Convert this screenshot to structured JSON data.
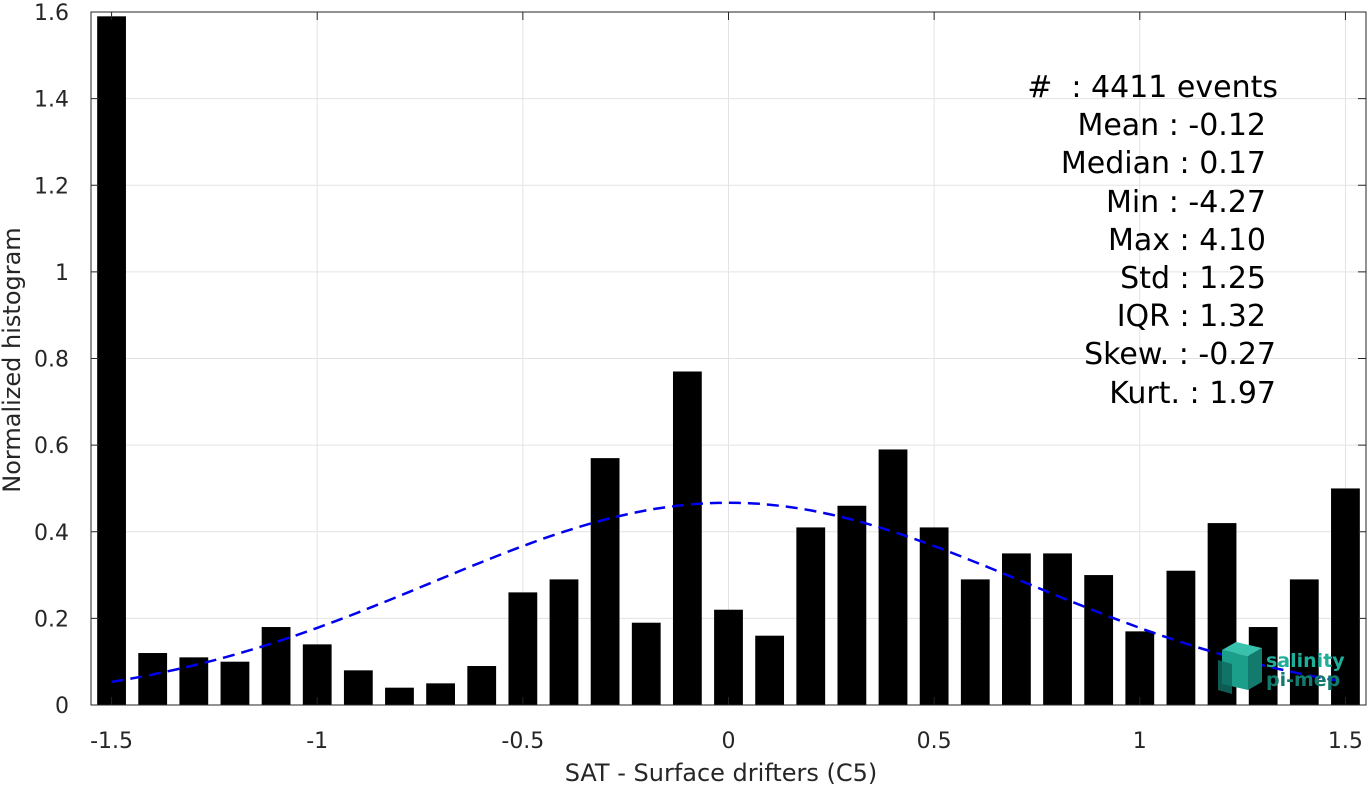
{
  "chart_data": {
    "type": "bar",
    "xlabel": "SAT - Surface drifters (C5)",
    "ylabel": "Normalized histogram",
    "xlim": [
      -1.55,
      1.55
    ],
    "ylim": [
      0,
      1.6
    ],
    "xticks": [
      -1.5,
      -1,
      -0.5,
      0,
      0.5,
      1,
      1.5
    ],
    "xtick_labels": [
      "-1.5",
      "-1",
      "-0.5",
      "0",
      "0.5",
      "1",
      "1.5"
    ],
    "yticks": [
      0,
      0.2,
      0.4,
      0.6,
      0.8,
      1,
      1.2,
      1.4,
      1.6
    ],
    "ytick_labels": [
      "0",
      "0.2",
      "0.4",
      "0.6",
      "0.8",
      "1",
      "1.2",
      "1.4",
      "1.6"
    ],
    "grid": true,
    "bar_color": "#000000",
    "bar_width": 0.07,
    "bars": {
      "x": [
        -1.5,
        -1.4,
        -1.3,
        -1.2,
        -1.1,
        -1.0,
        -0.9,
        -0.8,
        -0.7,
        -0.6,
        -0.5,
        -0.4,
        -0.3,
        -0.2,
        -0.1,
        0.0,
        0.1,
        0.2,
        0.3,
        0.4,
        0.5,
        0.6,
        0.7,
        0.8,
        0.9,
        1.0,
        1.1,
        1.2,
        1.3,
        1.4,
        1.5
      ],
      "values": [
        1.59,
        0.12,
        0.11,
        0.1,
        0.18,
        0.14,
        0.08,
        0.04,
        0.05,
        0.09,
        0.26,
        0.29,
        0.57,
        0.19,
        0.77,
        0.22,
        0.16,
        0.41,
        0.46,
        0.59,
        0.41,
        0.29,
        0.35,
        0.35,
        0.3,
        0.17,
        0.31,
        0.42,
        0.18,
        0.29,
        0.5
      ]
    },
    "fit_curve": {
      "type": "normal",
      "mean": 0.0,
      "peak": 0.467,
      "sigma": 0.72,
      "x_range": [
        -1.5,
        1.5
      ],
      "color": "#0000ee",
      "style": "dashed"
    },
    "stats": {
      "count_label": "#  : 4411 events",
      "lines": [
        "Mean : -0.12",
        "Median : 0.17",
        "Min : -4.27",
        "Max : 4.10",
        "Std : 1.25",
        "IQR : 1.32",
        "Skew. : -0.27",
        "Kurt. : 1.97"
      ]
    }
  },
  "logo": {
    "line1": "salinity",
    "line2": "pi-mep",
    "color1": "#1fae9a",
    "color2": "#137a6e"
  }
}
